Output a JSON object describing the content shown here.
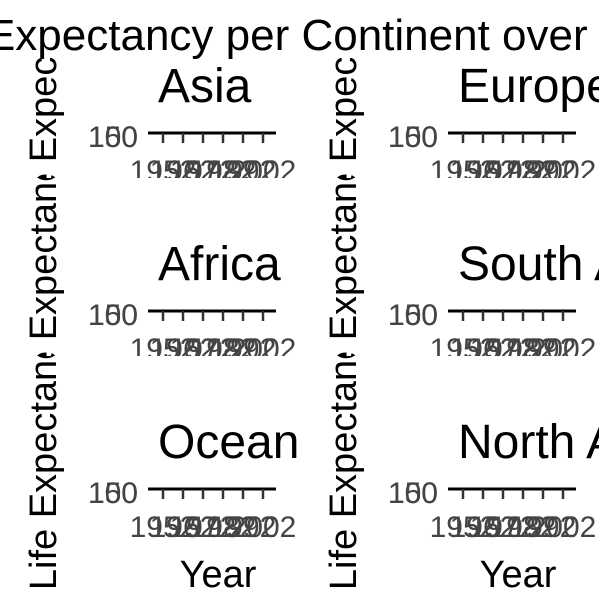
{
  "chart_data": {
    "type": "line",
    "title": "Life Expectancy per Continent over Time",
    "xlabel": "Year",
    "ylabel": "Life Expectancy",
    "xlim": [
      1952,
      2007
    ],
    "x_ticks": [
      "1952",
      "1962",
      "1972",
      "1982",
      "1992",
      "2002"
    ],
    "y_ticks": [
      "150",
      "100"
    ],
    "grid": false,
    "panels": [
      {
        "name": "Asia"
      },
      {
        "name": "Europe"
      },
      {
        "name": "Africa"
      },
      {
        "name": "South America"
      },
      {
        "name": "Oceania"
      },
      {
        "name": "North America"
      }
    ]
  }
}
